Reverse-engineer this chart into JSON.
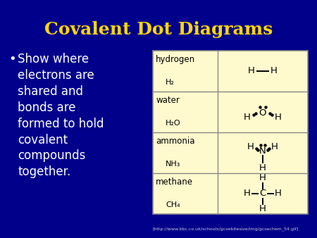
{
  "title": "Covalent Dot Diagrams",
  "title_color": "#FFD700",
  "background_color": "#00008B",
  "bullet_text": "Show where\nelectrons are\nshared and\nbonds are\nformed to hold\ncovalent\ncompounds\ntogether.",
  "bullet_color": "#FFFFFF",
  "table_bg": "#FFFACD",
  "table_border": "#888888",
  "url_text": "[http://www.bbc.co.uk/schools/gcsebitesize/img/gcsechem_54.gif]",
  "url_color": "#CCCCCC",
  "rows": [
    {
      "name": "hydrogen",
      "formula": "H₂",
      "diagram_type": "hydrogen"
    },
    {
      "name": "water",
      "formula": "H₂O",
      "diagram_type": "water"
    },
    {
      "name": "ammonia",
      "formula": "NH₃",
      "diagram_type": "ammonia"
    },
    {
      "name": "methane",
      "formula": "CH₄",
      "diagram_type": "methane"
    }
  ]
}
